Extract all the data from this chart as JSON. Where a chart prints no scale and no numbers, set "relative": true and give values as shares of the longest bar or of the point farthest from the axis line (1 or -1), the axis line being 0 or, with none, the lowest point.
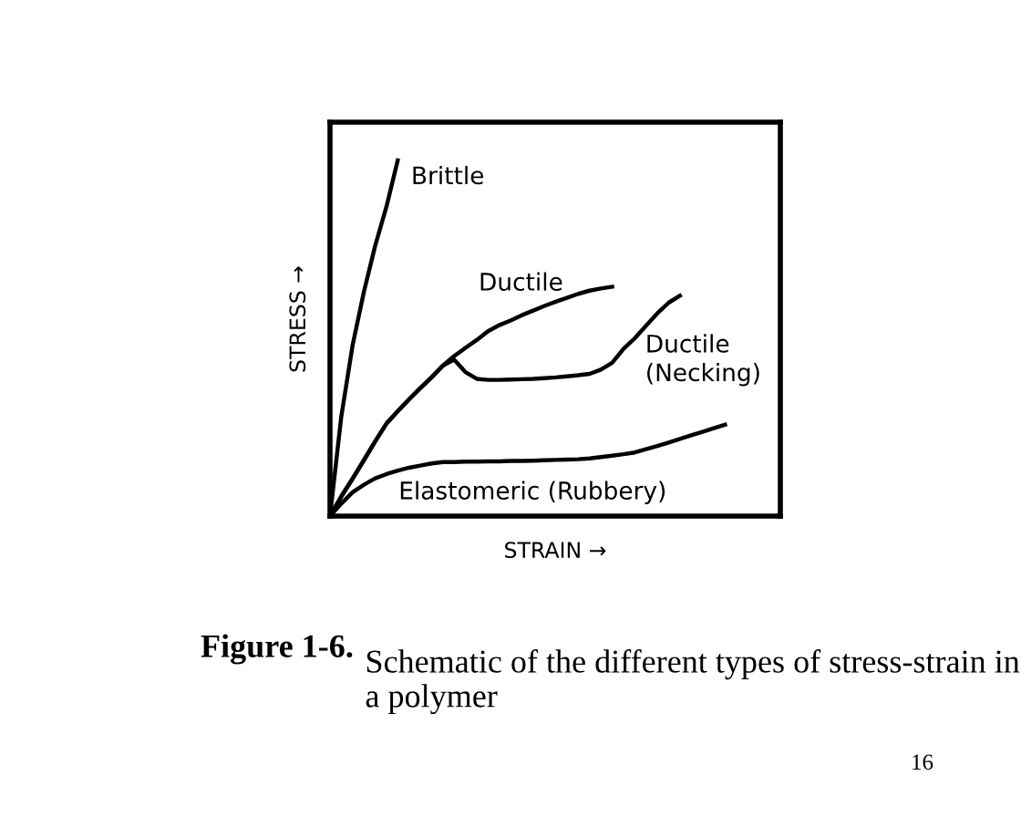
{
  "chart_data": {
    "type": "line",
    "relative": true,
    "xlabel": "STRAIN →",
    "ylabel": "STRESS →",
    "legend": false,
    "marker": "none",
    "line_style": "solid",
    "categories": [
      null,
      null,
      null,
      null,
      null,
      null,
      null,
      null,
      null,
      null,
      null,
      null,
      null,
      null,
      null,
      null,
      null,
      null,
      null,
      null,
      null,
      null,
      null,
      null,
      null,
      null,
      null,
      null,
      null,
      null,
      null,
      null,
      null,
      null,
      null,
      null
    ],
    "series": [
      {
        "name": "Brittle",
        "color": "#000000",
        "values": [
          0,
          0.28,
          0.48,
          0.63,
          0.76,
          0.87,
          1.0,
          null,
          null,
          null,
          null,
          null,
          null,
          null,
          null,
          null,
          null,
          null,
          null,
          null,
          null,
          null,
          null,
          null,
          null,
          null,
          null,
          null,
          null,
          null,
          null,
          null,
          null,
          null,
          null,
          null
        ]
      },
      {
        "name": "Ductile",
        "color": "#000000",
        "values": [
          0,
          0.055,
          0.105,
          0.157,
          0.21,
          0.26,
          0.295,
          0.328,
          0.36,
          0.39,
          0.423,
          0.45,
          0.473,
          0.495,
          0.52,
          0.537,
          0.55,
          0.565,
          0.578,
          0.591,
          0.603,
          0.614,
          0.625,
          0.634,
          0.64,
          0.645,
          null,
          null,
          null,
          null,
          null,
          null,
          null,
          null,
          null,
          null
        ]
      },
      {
        "name": "Ductile\n(Necking)",
        "color": "#000000",
        "values": [
          0,
          0.055,
          0.105,
          0.157,
          0.21,
          0.26,
          0.295,
          0.328,
          0.36,
          0.39,
          0.423,
          0.44,
          0.405,
          0.386,
          0.383,
          0.383,
          0.384,
          0.385,
          0.386,
          0.388,
          0.39,
          0.393,
          0.396,
          0.4,
          0.412,
          0.431,
          0.47,
          0.5,
          0.535,
          0.57,
          0.6,
          0.62,
          null,
          null,
          null,
          null
        ]
      },
      {
        "name": "Elastomeric (Rubbery)",
        "color": "#000000",
        "values": [
          0,
          0.035,
          0.067,
          0.088,
          0.106,
          0.118,
          0.128,
          0.136,
          0.142,
          0.148,
          0.152,
          0.152,
          0.153,
          0.153,
          0.154,
          0.154,
          0.155,
          0.155,
          0.156,
          0.157,
          0.158,
          0.159,
          0.16,
          0.162,
          0.166,
          0.17,
          0.174,
          0.179,
          0.188,
          0.197,
          0.207,
          0.217,
          0.227,
          0.237,
          0.247,
          0.257
        ]
      }
    ],
    "annotations": [
      "Figure 1-6.",
      "Schematic of the different types of stress-strain in a polymer",
      "16"
    ]
  }
}
